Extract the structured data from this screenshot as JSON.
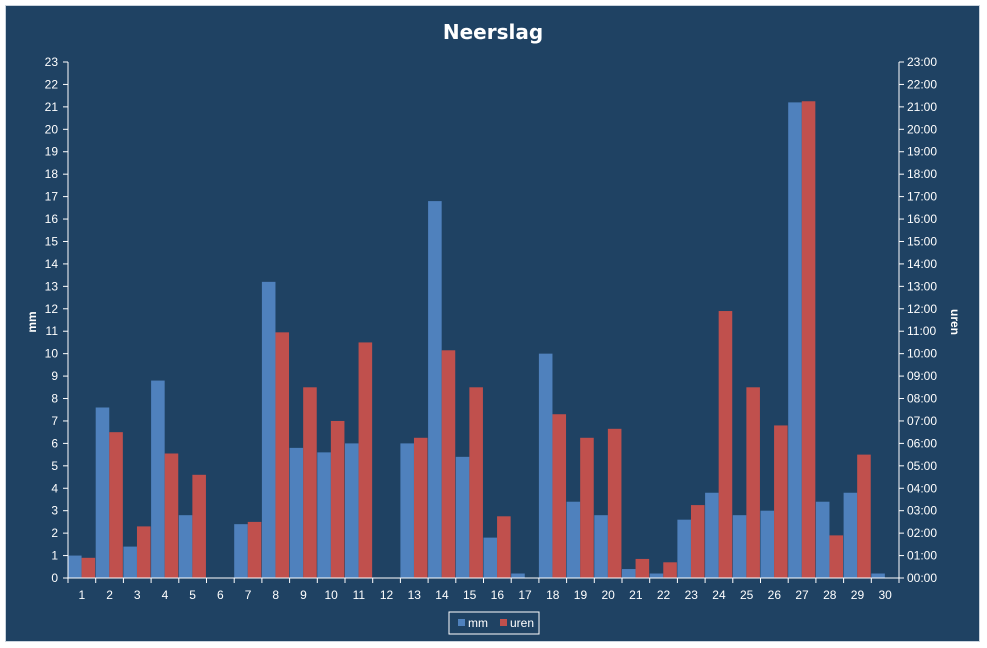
{
  "chart_data": {
    "type": "bar",
    "title": "Neerslag",
    "xlabel": "",
    "ylabel": "mm",
    "y2label": "uren",
    "ylim": [
      0,
      23
    ],
    "y2lim": [
      "00:00",
      "23:00"
    ],
    "categories": [
      "1",
      "2",
      "3",
      "4",
      "5",
      "6",
      "7",
      "8",
      "9",
      "10",
      "11",
      "12",
      "13",
      "14",
      "15",
      "16",
      "17",
      "18",
      "19",
      "20",
      "21",
      "22",
      "23",
      "24",
      "25",
      "26",
      "27",
      "28",
      "29",
      "30"
    ],
    "y_ticks": [
      "0",
      "1",
      "2",
      "3",
      "4",
      "5",
      "6",
      "7",
      "8",
      "9",
      "10",
      "11",
      "12",
      "13",
      "14",
      "15",
      "16",
      "17",
      "18",
      "19",
      "20",
      "21",
      "22",
      "23"
    ],
    "y2_ticks": [
      "00:00",
      "01:00",
      "02:00",
      "03:00",
      "04:00",
      "05:00",
      "06:00",
      "07:00",
      "08:00",
      "09:00",
      "10:00",
      "11:00",
      "12:00",
      "13:00",
      "14:00",
      "15:00",
      "16:00",
      "17:00",
      "18:00",
      "19:00",
      "20:00",
      "21:00",
      "22:00",
      "23:00"
    ],
    "series": [
      {
        "name": "mm",
        "color": "#4f81bd",
        "axis": "left",
        "values": [
          1.0,
          7.6,
          1.4,
          8.8,
          2.8,
          0,
          2.4,
          13.2,
          5.8,
          5.6,
          6.0,
          0,
          6.0,
          16.8,
          5.4,
          1.8,
          0.2,
          10.0,
          3.4,
          2.8,
          0.4,
          0.2,
          2.6,
          3.8,
          2.8,
          3.0,
          21.2,
          3.4,
          3.8,
          0.2
        ]
      },
      {
        "name": "uren",
        "color": "#c0504d",
        "axis": "right",
        "values": [
          0.9,
          6.5,
          2.3,
          5.55,
          4.6,
          0,
          2.5,
          10.95,
          8.5,
          7.0,
          10.5,
          0,
          6.25,
          10.15,
          8.5,
          2.75,
          0,
          7.3,
          6.25,
          6.65,
          0.85,
          0.7,
          3.25,
          11.9,
          8.5,
          6.8,
          21.25,
          1.9,
          5.5,
          0
        ]
      }
    ],
    "grid": false,
    "legend_position": "bottom"
  },
  "colors": {
    "background": "#1f4263",
    "text": "#ffffff",
    "axis": "#ffffff"
  }
}
